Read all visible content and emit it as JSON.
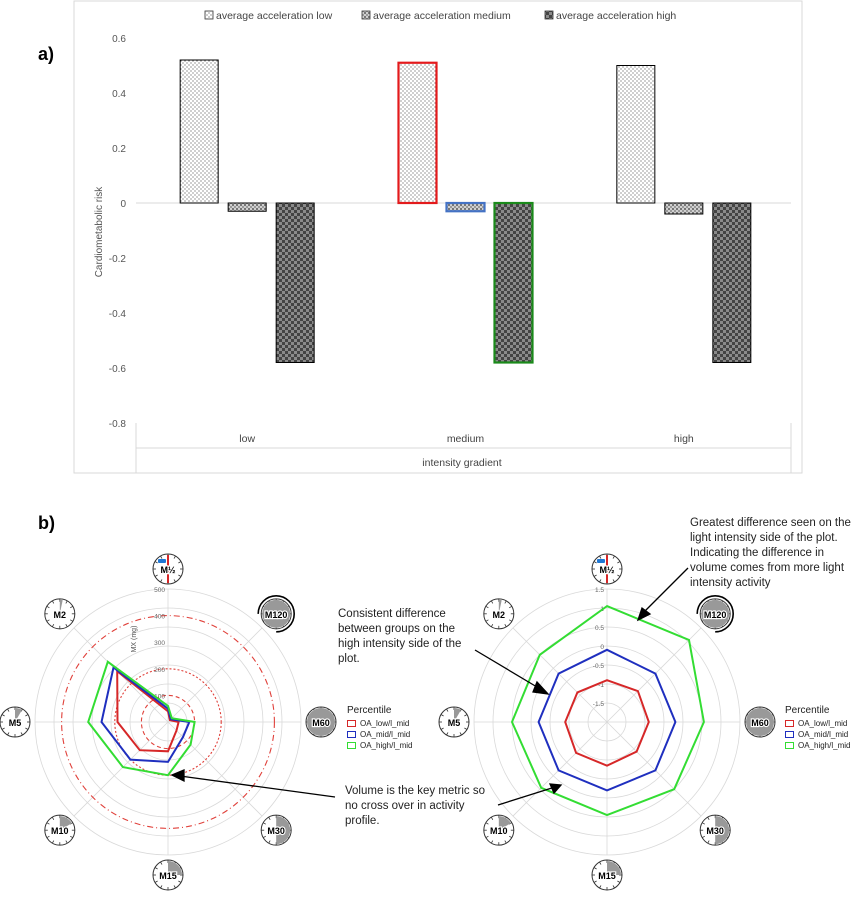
{
  "panel_a_label": "a)",
  "panel_b_label": "b)",
  "chart_data": [
    {
      "type": "bar",
      "title": "",
      "categories": [
        "low",
        "medium",
        "high"
      ],
      "series": [
        {
          "name": "average acceleration low",
          "values": [
            0.52,
            0.51,
            0.5
          ]
        },
        {
          "name": "average acceleration medium",
          "values": [
            -0.03,
            -0.03,
            -0.04
          ]
        },
        {
          "name": "average acceleration high",
          "values": [
            -0.58,
            -0.58,
            -0.58
          ]
        }
      ],
      "xlabel": "intensity gradient",
      "ylabel": "Cardiometabolic risk",
      "ylim": [
        -0.8,
        0.6
      ],
      "yticks": [
        "0.6",
        "0.4",
        "0.2",
        "0",
        "-0.2",
        "-0.4",
        "-0.6",
        "-0.8"
      ],
      "legend": "top",
      "highlight_color_1": "#e31a1c",
      "highlight_color_2": "#4472c4",
      "highlight_color_3": "#1a8a1a"
    },
    {
      "type": "radar",
      "axes": [
        "M½",
        "M120",
        "M60",
        "M30",
        "M15",
        "M10",
        "M5",
        "M2"
      ],
      "radial_label": "MX (mg)",
      "radial_ticks": [
        "500",
        "400",
        "300",
        "200",
        "100"
      ],
      "rmax": 500,
      "legend_title": "Percentile",
      "series": [
        {
          "name": "OA_low/l_mid",
          "color": "#d62728",
          "values": [
            40,
            10,
            40,
            45,
            110,
            150,
            190,
            270
          ]
        },
        {
          "name": "OA_mid/l_mid",
          "color": "#1f2fbf",
          "values": [
            50,
            15,
            80,
            80,
            150,
            200,
            250,
            290
          ]
        },
        {
          "name": "OA_high/l_mid",
          "color": "#33dd33",
          "values": [
            60,
            20,
            100,
            120,
            200,
            240,
            300,
            320
          ]
        }
      ]
    },
    {
      "type": "radar",
      "axes": [
        "M½",
        "M120",
        "M60",
        "M30",
        "M15",
        "M10",
        "M5",
        "M2"
      ],
      "radial_ticks": [
        "1.5",
        "1",
        "0.5",
        "0",
        "-0.5",
        "-1",
        "-1.5"
      ],
      "rmin": -2,
      "rmax": 1.5,
      "legend_title": "Percentile",
      "series": [
        {
          "name": "OA_low/l_mid",
          "color": "#d62728",
          "values": [
            -0.9,
            -0.85,
            -0.9,
            -0.9,
            -0.85,
            -0.85,
            -0.9,
            -0.9
          ]
        },
        {
          "name": "OA_mid/l_mid",
          "color": "#1f2fbf",
          "values": [
            -0.1,
            -0.2,
            -0.2,
            -0.2,
            -0.2,
            -0.2,
            -0.2,
            -0.2
          ]
        },
        {
          "name": "OA_high/l_mid",
          "color": "#33dd33",
          "values": [
            1.05,
            1.05,
            0.55,
            0.5,
            0.45,
            0.45,
            0.5,
            0.5
          ]
        }
      ]
    }
  ],
  "annotations": {
    "greatest": "Greatest difference seen on the light intensity side of the plot. Indicating the difference in volume comes from more light intensity activity",
    "consistent": "Consistent difference between groups on the high intensity side of the plot.",
    "volume": "Volume is the key metric so no cross over in activity profile."
  }
}
